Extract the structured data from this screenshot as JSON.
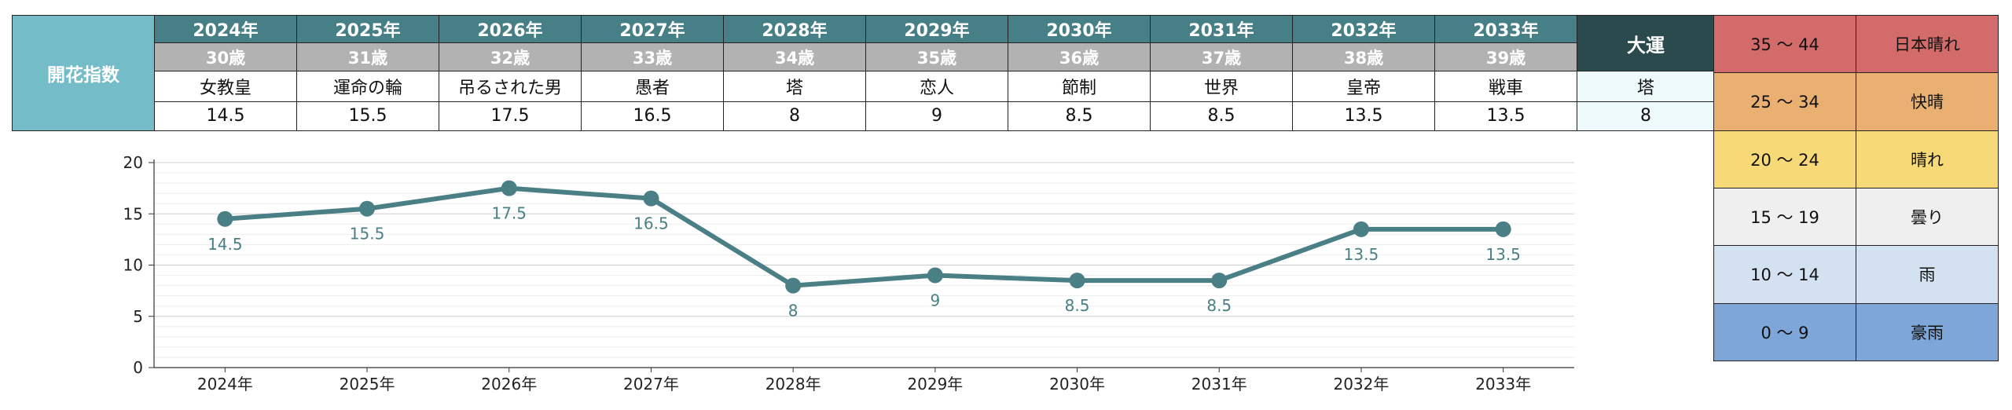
{
  "table": {
    "label": "開花指数",
    "years": [
      "2024年",
      "2025年",
      "2026年",
      "2027年",
      "2028年",
      "2029年",
      "2030年",
      "2031年",
      "2032年",
      "2033年"
    ],
    "ages": [
      "30歳",
      "31歳",
      "32歳",
      "33歳",
      "34歳",
      "35歳",
      "36歳",
      "37歳",
      "38歳",
      "39歳"
    ],
    "cards": [
      "女教皇",
      "運命の輪",
      "吊るされた男",
      "愚者",
      "塔",
      "恋人",
      "節制",
      "世界",
      "皇帝",
      "戦車"
    ],
    "values": [
      "14.5",
      "15.5",
      "17.5",
      "16.5",
      "8",
      "9",
      "8.5",
      "8.5",
      "13.5",
      "13.5"
    ],
    "taiun": {
      "label": "大運",
      "card": "塔",
      "value": "8"
    }
  },
  "legend": [
    {
      "range": "35 〜 44",
      "name": "日本晴れ",
      "color": "#d46b6b"
    },
    {
      "range": "25 〜 34",
      "name": "快晴",
      "color": "#e9b071"
    },
    {
      "range": "20 〜 24",
      "name": "晴れ",
      "color": "#f8d977"
    },
    {
      "range": "15 〜 19",
      "name": "曇り",
      "color": "#efefef"
    },
    {
      "range": "10 〜 14",
      "name": "雨",
      "color": "#d3e1f1"
    },
    {
      "range": "0 〜 9",
      "name": "豪雨",
      "color": "#7fa6d8"
    }
  ],
  "chart_data": {
    "type": "line",
    "categories": [
      "2024年",
      "2025年",
      "2026年",
      "2027年",
      "2028年",
      "2029年",
      "2030年",
      "2031年",
      "2032年",
      "2033年"
    ],
    "values": [
      14.5,
      15.5,
      17.5,
      16.5,
      8,
      9,
      8.5,
      8.5,
      13.5,
      13.5
    ],
    "data_labels": [
      "14.5",
      "15.5",
      "17.5",
      "16.5",
      "8",
      "9",
      "8.5",
      "8.5",
      "13.5",
      "13.5"
    ],
    "y_ticks": [
      "0",
      "5",
      "10",
      "15",
      "20"
    ],
    "ylim": [
      0,
      20
    ],
    "grid": true,
    "color": "#4a7f86"
  }
}
